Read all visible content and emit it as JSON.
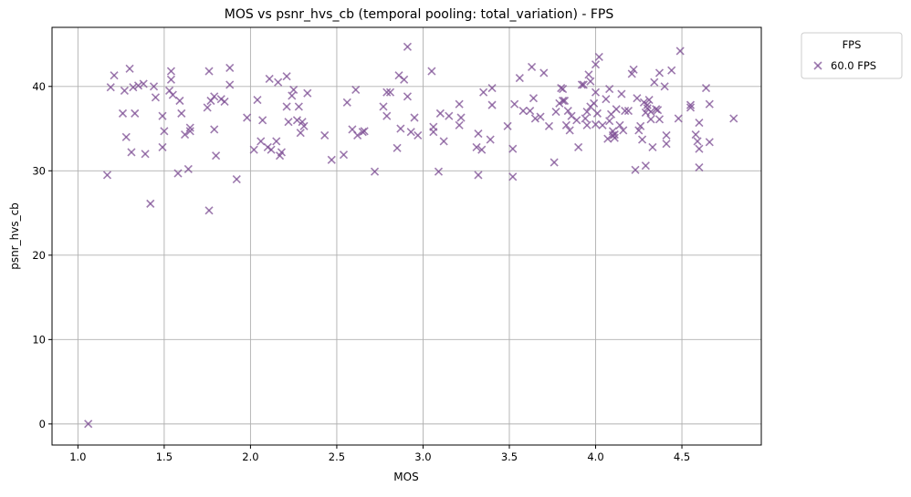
{
  "chart_data": {
    "type": "scatter",
    "title": "MOS vs psnr_hvs_cb (temporal pooling: total_variation) - FPS",
    "xlabel": "MOS",
    "ylabel": "psnr_hvs_cb",
    "xlim": [
      0.85,
      4.96
    ],
    "ylim": [
      -2.5,
      47.0
    ],
    "xticks": [
      1.0,
      1.5,
      2.0,
      2.5,
      3.0,
      3.5,
      4.0,
      4.5
    ],
    "xtick_labels": [
      "1.0",
      "1.5",
      "2.0",
      "2.5",
      "3.0",
      "3.5",
      "4.0",
      "4.5"
    ],
    "yticks": [
      0,
      10,
      20,
      30,
      40
    ],
    "ytick_labels": [
      "0",
      "10",
      "20",
      "30",
      "40"
    ],
    "grid": true,
    "legend": {
      "title": "FPS",
      "placement": "outside-top-right"
    },
    "series": [
      {
        "name": "60.0 FPS",
        "marker": "x",
        "color": "#7d4f94",
        "points": [
          [
            1.06,
            0.0
          ],
          [
            1.17,
            29.5
          ],
          [
            1.19,
            39.9
          ],
          [
            1.21,
            41.3
          ],
          [
            1.26,
            36.8
          ],
          [
            1.27,
            39.5
          ],
          [
            1.28,
            34.0
          ],
          [
            1.3,
            42.1
          ],
          [
            1.31,
            32.2
          ],
          [
            1.32,
            39.9
          ],
          [
            1.33,
            36.8
          ],
          [
            1.35,
            40.1
          ],
          [
            1.38,
            40.3
          ],
          [
            1.39,
            32.0
          ],
          [
            1.42,
            26.1
          ],
          [
            1.44,
            40.0
          ],
          [
            1.45,
            38.7
          ],
          [
            1.49,
            36.5
          ],
          [
            1.49,
            32.8
          ],
          [
            1.5,
            34.7
          ],
          [
            1.53,
            39.5
          ],
          [
            1.54,
            41.8
          ],
          [
            1.54,
            40.8
          ],
          [
            1.55,
            39.0
          ],
          [
            1.58,
            29.7
          ],
          [
            1.59,
            38.3
          ],
          [
            1.6,
            36.8
          ],
          [
            1.62,
            34.3
          ],
          [
            1.64,
            30.2
          ],
          [
            1.65,
            35.1
          ],
          [
            1.65,
            34.7
          ],
          [
            1.75,
            37.5
          ],
          [
            1.76,
            41.8
          ],
          [
            1.76,
            25.3
          ],
          [
            1.77,
            38.3
          ],
          [
            1.79,
            38.8
          ],
          [
            1.79,
            34.9
          ],
          [
            1.8,
            31.8
          ],
          [
            1.83,
            38.5
          ],
          [
            1.85,
            38.2
          ],
          [
            1.88,
            42.2
          ],
          [
            1.88,
            40.2
          ],
          [
            1.92,
            29.0
          ],
          [
            1.98,
            36.3
          ],
          [
            2.02,
            32.5
          ],
          [
            2.04,
            38.4
          ],
          [
            2.06,
            33.5
          ],
          [
            2.07,
            36.0
          ],
          [
            2.1,
            32.8
          ],
          [
            2.11,
            40.9
          ],
          [
            2.12,
            32.5
          ],
          [
            2.15,
            33.5
          ],
          [
            2.16,
            40.5
          ],
          [
            2.17,
            31.8
          ],
          [
            2.18,
            32.2
          ],
          [
            2.21,
            37.6
          ],
          [
            2.21,
            41.2
          ],
          [
            2.22,
            35.8
          ],
          [
            2.24,
            38.9
          ],
          [
            2.25,
            39.6
          ],
          [
            2.27,
            36.0
          ],
          [
            2.28,
            37.6
          ],
          [
            2.29,
            34.5
          ],
          [
            2.3,
            35.8
          ],
          [
            2.31,
            35.3
          ],
          [
            2.33,
            39.2
          ],
          [
            2.43,
            34.2
          ],
          [
            2.47,
            31.3
          ],
          [
            2.54,
            31.9
          ],
          [
            2.56,
            38.1
          ],
          [
            2.59,
            34.9
          ],
          [
            2.61,
            39.6
          ],
          [
            2.62,
            34.2
          ],
          [
            2.65,
            34.6
          ],
          [
            2.66,
            34.7
          ],
          [
            2.72,
            29.9
          ],
          [
            2.77,
            37.6
          ],
          [
            2.79,
            36.5
          ],
          [
            2.79,
            39.3
          ],
          [
            2.81,
            39.3
          ],
          [
            2.85,
            32.7
          ],
          [
            2.86,
            41.3
          ],
          [
            2.87,
            35.0
          ],
          [
            2.89,
            40.8
          ],
          [
            2.91,
            44.7
          ],
          [
            2.91,
            38.8
          ],
          [
            2.93,
            34.6
          ],
          [
            2.95,
            36.3
          ],
          [
            2.97,
            34.2
          ],
          [
            3.05,
            41.8
          ],
          [
            3.06,
            35.2
          ],
          [
            3.06,
            34.6
          ],
          [
            3.09,
            29.9
          ],
          [
            3.1,
            36.8
          ],
          [
            3.12,
            33.5
          ],
          [
            3.15,
            36.5
          ],
          [
            3.21,
            37.9
          ],
          [
            3.21,
            35.4
          ],
          [
            3.22,
            36.3
          ],
          [
            3.31,
            32.8
          ],
          [
            3.32,
            34.4
          ],
          [
            3.32,
            29.5
          ],
          [
            3.34,
            32.5
          ],
          [
            3.35,
            39.3
          ],
          [
            3.39,
            33.7
          ],
          [
            3.4,
            37.8
          ],
          [
            3.4,
            39.8
          ],
          [
            3.49,
            35.3
          ],
          [
            3.52,
            29.3
          ],
          [
            3.52,
            32.6
          ],
          [
            3.53,
            37.9
          ],
          [
            3.56,
            41.0
          ],
          [
            3.58,
            37.1
          ],
          [
            3.62,
            37.1
          ],
          [
            3.63,
            42.3
          ],
          [
            3.64,
            38.6
          ],
          [
            3.65,
            36.2
          ],
          [
            3.68,
            36.4
          ],
          [
            3.7,
            41.6
          ],
          [
            3.73,
            35.3
          ],
          [
            3.76,
            31.0
          ],
          [
            3.77,
            37.0
          ],
          [
            3.79,
            38.0
          ],
          [
            3.8,
            39.8
          ],
          [
            3.81,
            39.7
          ],
          [
            3.81,
            38.3
          ],
          [
            3.82,
            38.3
          ],
          [
            3.83,
            35.4
          ],
          [
            3.84,
            37.1
          ],
          [
            3.85,
            34.8
          ],
          [
            3.86,
            36.5
          ],
          [
            3.89,
            36.0
          ],
          [
            3.9,
            32.8
          ],
          [
            3.92,
            40.2
          ],
          [
            3.93,
            40.2
          ],
          [
            3.94,
            36.2
          ],
          [
            3.95,
            37.0
          ],
          [
            3.95,
            35.4
          ],
          [
            3.96,
            41.4
          ],
          [
            3.97,
            37.6
          ],
          [
            3.97,
            40.6
          ],
          [
            3.99,
            38.0
          ],
          [
            4.0,
            35.5
          ],
          [
            4.0,
            42.6
          ],
          [
            4.0,
            39.3
          ],
          [
            4.01,
            36.8
          ],
          [
            4.02,
            43.5
          ],
          [
            4.04,
            35.4
          ],
          [
            4.06,
            38.5
          ],
          [
            4.07,
            33.8
          ],
          [
            4.08,
            35.9
          ],
          [
            4.08,
            39.7
          ],
          [
            4.09,
            36.7
          ],
          [
            4.1,
            34.2
          ],
          [
            4.1,
            34.7
          ],
          [
            4.11,
            34.3
          ],
          [
            4.11,
            33.9
          ],
          [
            4.12,
            37.3
          ],
          [
            4.14,
            35.4
          ],
          [
            4.15,
            39.1
          ],
          [
            4.16,
            34.8
          ],
          [
            4.17,
            37.1
          ],
          [
            4.19,
            37.1
          ],
          [
            4.21,
            41.5
          ],
          [
            4.22,
            42.0
          ],
          [
            4.23,
            30.1
          ],
          [
            4.24,
            38.6
          ],
          [
            4.25,
            34.8
          ],
          [
            4.26,
            35.3
          ],
          [
            4.27,
            33.7
          ],
          [
            4.28,
            38.1
          ],
          [
            4.29,
            30.6
          ],
          [
            4.29,
            36.9
          ],
          [
            4.3,
            37.4
          ],
          [
            4.3,
            37.8
          ],
          [
            4.31,
            38.4
          ],
          [
            4.32,
            36.1
          ],
          [
            4.32,
            37.0
          ],
          [
            4.33,
            32.8
          ],
          [
            4.34,
            40.5
          ],
          [
            4.35,
            37.3
          ],
          [
            4.36,
            37.2
          ],
          [
            4.37,
            41.6
          ],
          [
            4.37,
            36.1
          ],
          [
            4.4,
            40.0
          ],
          [
            4.41,
            34.2
          ],
          [
            4.41,
            33.2
          ],
          [
            4.44,
            41.9
          ],
          [
            4.48,
            36.2
          ],
          [
            4.49,
            44.2
          ],
          [
            4.55,
            37.5
          ],
          [
            4.55,
            37.8
          ],
          [
            4.58,
            34.3
          ],
          [
            4.59,
            33.5
          ],
          [
            4.6,
            35.7
          ],
          [
            4.6,
            30.4
          ],
          [
            4.6,
            32.6
          ],
          [
            4.64,
            39.8
          ],
          [
            4.66,
            33.4
          ],
          [
            4.66,
            37.9
          ],
          [
            4.8,
            36.2
          ]
        ]
      }
    ]
  }
}
